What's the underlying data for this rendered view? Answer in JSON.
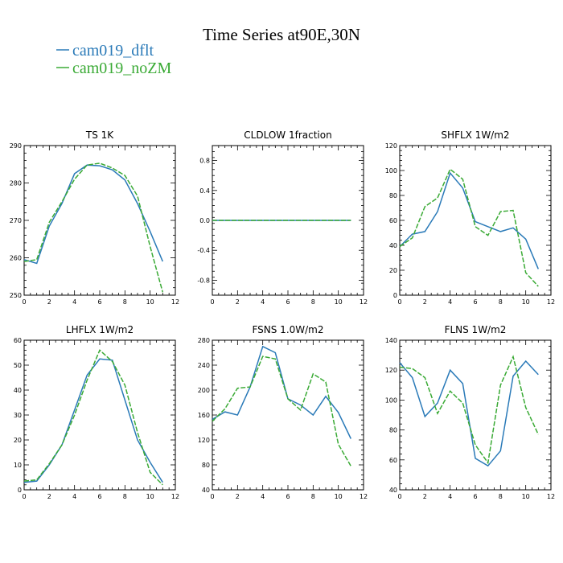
{
  "figure": {
    "title": "Time Series at90E,30N"
  },
  "legend": [
    {
      "name": "cam019_dflt",
      "color": "#2a7ab8",
      "dash": "solid"
    },
    {
      "name": "cam019_noZM",
      "color": "#3aaa35",
      "dash": "dashed"
    }
  ],
  "chart_data": [
    {
      "type": "line",
      "title": "TS   1K",
      "xlim": [
        0,
        12
      ],
      "ylim": [
        250,
        290
      ],
      "xticks": [
        0,
        2,
        4,
        6,
        8,
        10,
        12
      ],
      "yticks": [
        250,
        260,
        270,
        280,
        290
      ],
      "x": [
        0,
        1,
        2,
        3,
        4,
        5,
        6,
        7,
        8,
        9,
        10,
        11
      ],
      "series": [
        {
          "name": "cam019_dflt",
          "values": [
            259.5,
            258.5,
            268.5,
            274.5,
            282.5,
            284.8,
            284.6,
            283.5,
            280.8,
            274.5,
            267.0,
            259.0
          ]
        },
        {
          "name": "cam019_noZM",
          "values": [
            259.0,
            259.5,
            269.5,
            275.0,
            281.0,
            284.8,
            285.3,
            284.0,
            282.0,
            276.5,
            263.0,
            250.8
          ]
        }
      ]
    },
    {
      "type": "line",
      "title": "CLDLOW   1fraction",
      "xlim": [
        0,
        12
      ],
      "ylim": [
        -1,
        1
      ],
      "xticks": [
        0,
        2,
        4,
        6,
        8,
        10,
        12
      ],
      "yticks": [
        -0.8,
        -0.4,
        0.0,
        0.4,
        0.8
      ],
      "ytick_labels": [
        "-0.8",
        "-0.4",
        "0.0",
        "0.4",
        "0.8"
      ],
      "x": [
        0,
        1,
        2,
        3,
        4,
        5,
        6,
        7,
        8,
        9,
        10,
        11
      ],
      "series": [
        {
          "name": "cam019_dflt",
          "values": [
            0,
            0,
            0,
            0,
            0,
            0,
            0,
            0,
            0,
            0,
            0,
            0
          ]
        },
        {
          "name": "cam019_noZM",
          "values": [
            0,
            0,
            0,
            0,
            0,
            0,
            0,
            0,
            0,
            0,
            0,
            0
          ]
        }
      ]
    },
    {
      "type": "line",
      "title": "SHFLX   1W/m2",
      "xlim": [
        0,
        12
      ],
      "ylim": [
        0,
        120
      ],
      "xticks": [
        0,
        2,
        4,
        6,
        8,
        10,
        12
      ],
      "yticks": [
        0,
        20,
        40,
        60,
        80,
        100,
        120
      ],
      "x": [
        0,
        1,
        2,
        3,
        4,
        5,
        6,
        7,
        8,
        9,
        10,
        11
      ],
      "series": [
        {
          "name": "cam019_dflt",
          "values": [
            39,
            49,
            51,
            67,
            98,
            86,
            59,
            55,
            51,
            54,
            45,
            21
          ]
        },
        {
          "name": "cam019_noZM",
          "values": [
            39,
            46,
            71,
            78,
            101,
            93,
            55,
            48,
            67,
            68,
            18,
            7
          ]
        }
      ]
    },
    {
      "type": "line",
      "title": "LHFLX   1W/m2",
      "xlim": [
        0,
        12
      ],
      "ylim": [
        0,
        60
      ],
      "xticks": [
        0,
        2,
        4,
        6,
        8,
        10,
        12
      ],
      "yticks": [
        0,
        10,
        20,
        30,
        40,
        50,
        60
      ],
      "x": [
        0,
        1,
        2,
        3,
        4,
        5,
        6,
        7,
        8,
        9,
        10,
        11
      ],
      "series": [
        {
          "name": "cam019_dflt",
          "values": [
            3,
            3.5,
            10,
            18,
            32,
            46,
            52.5,
            52,
            36,
            20,
            11,
            3
          ]
        },
        {
          "name": "cam019_noZM",
          "values": [
            3.5,
            4,
            10.5,
            18,
            30,
            44,
            56,
            51.5,
            42,
            23,
            7,
            2
          ]
        }
      ]
    },
    {
      "type": "line",
      "title": "FSNS   1.0W/m2",
      "xlim": [
        0,
        12
      ],
      "ylim": [
        40,
        280
      ],
      "xticks": [
        0,
        2,
        4,
        6,
        8,
        10,
        12
      ],
      "yticks": [
        40,
        80,
        120,
        160,
        200,
        240,
        280
      ],
      "x": [
        0,
        1,
        2,
        3,
        4,
        5,
        6,
        7,
        8,
        9,
        10,
        11
      ],
      "series": [
        {
          "name": "cam019_dflt",
          "values": [
            153,
            165,
            160,
            205,
            270,
            260,
            186,
            176,
            160,
            190,
            164,
            122
          ]
        },
        {
          "name": "cam019_noZM",
          "values": [
            150,
            170,
            203,
            205,
            254,
            250,
            186,
            168,
            226,
            213,
            113,
            78
          ]
        }
      ]
    },
    {
      "type": "line",
      "title": "FLNS   1W/m2",
      "xlim": [
        0,
        12
      ],
      "ylim": [
        40,
        140
      ],
      "xticks": [
        0,
        2,
        4,
        6,
        8,
        10,
        12
      ],
      "yticks": [
        40,
        60,
        80,
        100,
        120,
        140
      ],
      "x": [
        0,
        1,
        2,
        3,
        4,
        5,
        6,
        7,
        8,
        9,
        10,
        11
      ],
      "series": [
        {
          "name": "cam019_dflt",
          "values": [
            125,
            115,
            89,
            98,
            120,
            111,
            61,
            56,
            66,
            116,
            126,
            117
          ]
        },
        {
          "name": "cam019_noZM",
          "values": [
            122,
            121,
            115,
            91,
            106,
            98,
            70,
            58,
            110,
            129,
            95,
            77
          ]
        }
      ]
    }
  ]
}
